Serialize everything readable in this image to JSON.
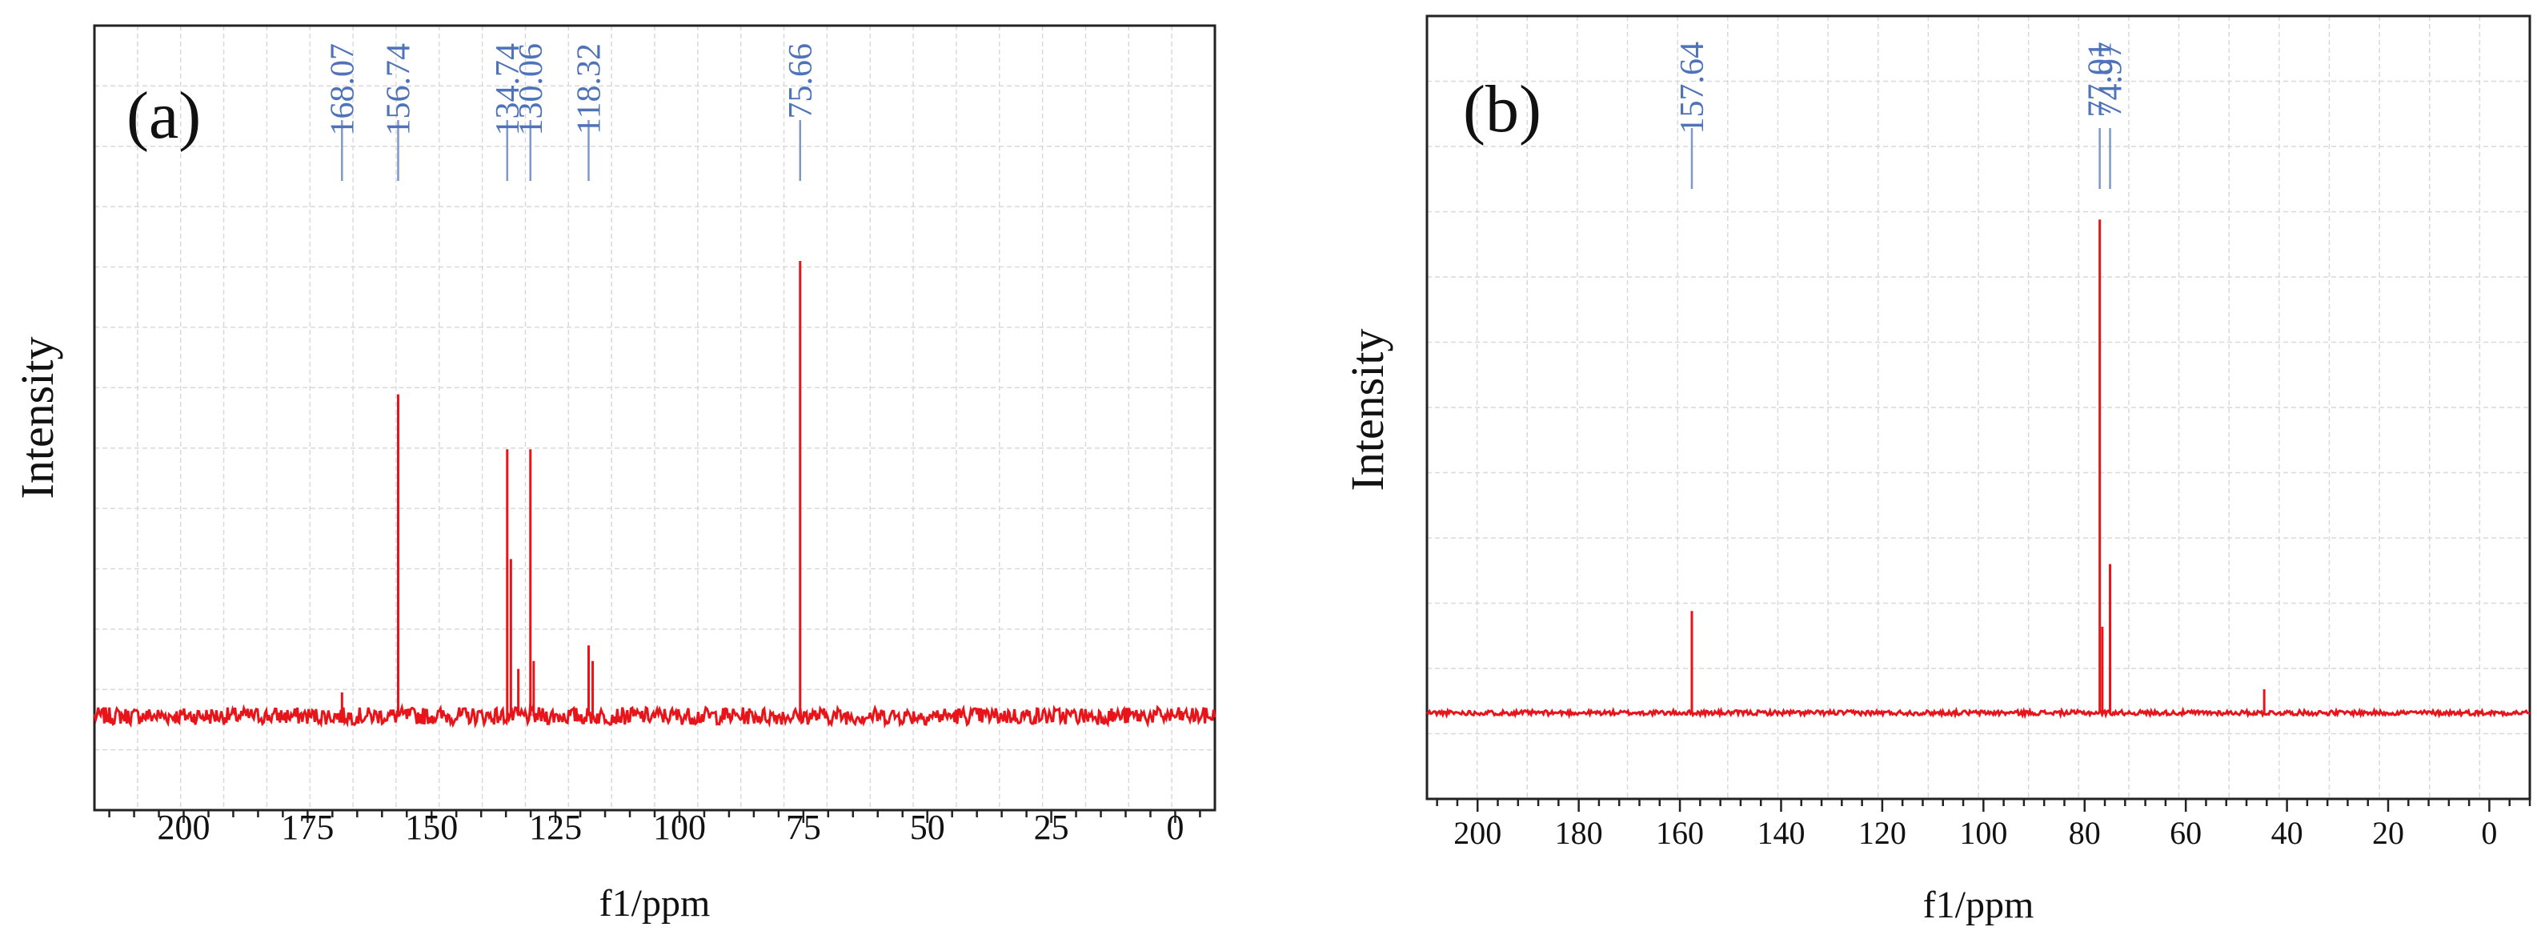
{
  "colors": {
    "spectrum": "#e8141a",
    "peak_label": "#4f73b8",
    "peak_line": "#7d98c9",
    "grid": "#d9d9d9",
    "axis": "#222222"
  },
  "chart_data": [
    {
      "type": "line",
      "panel_label": "(a)",
      "xlabel": "f1/ppm",
      "ylabel": "Intensity",
      "xlim": [
        218,
        -8
      ],
      "x_reversed": true,
      "ylim": [
        0,
        1
      ],
      "grid": true,
      "x_ticks": [
        200,
        175,
        150,
        125,
        100,
        75,
        50,
        25,
        0
      ],
      "baseline": 0.12,
      "noise": 0.011,
      "peak_labels": [
        "168.07",
        "156.74",
        "134.74",
        "130.06",
        "118.32",
        "75.66"
      ],
      "peak_label_positions": [
        168.07,
        156.74,
        134.74,
        130.06,
        118.32,
        75.66
      ],
      "peaks": [
        {
          "x": 168.07,
          "y": 0.15
        },
        {
          "x": 156.74,
          "y": 0.53
        },
        {
          "x": 134.74,
          "y": 0.46
        },
        {
          "x": 134.0,
          "y": 0.32
        },
        {
          "x": 132.5,
          "y": 0.18
        },
        {
          "x": 130.06,
          "y": 0.46
        },
        {
          "x": 129.4,
          "y": 0.19
        },
        {
          "x": 118.32,
          "y": 0.21
        },
        {
          "x": 117.5,
          "y": 0.19
        },
        {
          "x": 75.66,
          "y": 0.7
        }
      ]
    },
    {
      "type": "line",
      "panel_label": "(b)",
      "xlabel": "f1/ppm",
      "ylabel": "Intensity",
      "xlim": [
        210,
        -8
      ],
      "x_reversed": true,
      "ylim": [
        0,
        1
      ],
      "grid": true,
      "x_ticks": [
        200,
        180,
        160,
        140,
        120,
        100,
        80,
        60,
        40,
        20,
        0
      ],
      "baseline": 0.11,
      "noise": 0.003,
      "peak_labels": [
        "157.64",
        "77.01",
        "74.97"
      ],
      "peak_label_positions": [
        157.64,
        77.01,
        74.97
      ],
      "peaks": [
        {
          "x": 157.64,
          "y": 0.24
        },
        {
          "x": 77.01,
          "y": 0.74
        },
        {
          "x": 76.5,
          "y": 0.22
        },
        {
          "x": 74.97,
          "y": 0.3
        },
        {
          "x": 44.5,
          "y": 0.14
        }
      ]
    }
  ]
}
